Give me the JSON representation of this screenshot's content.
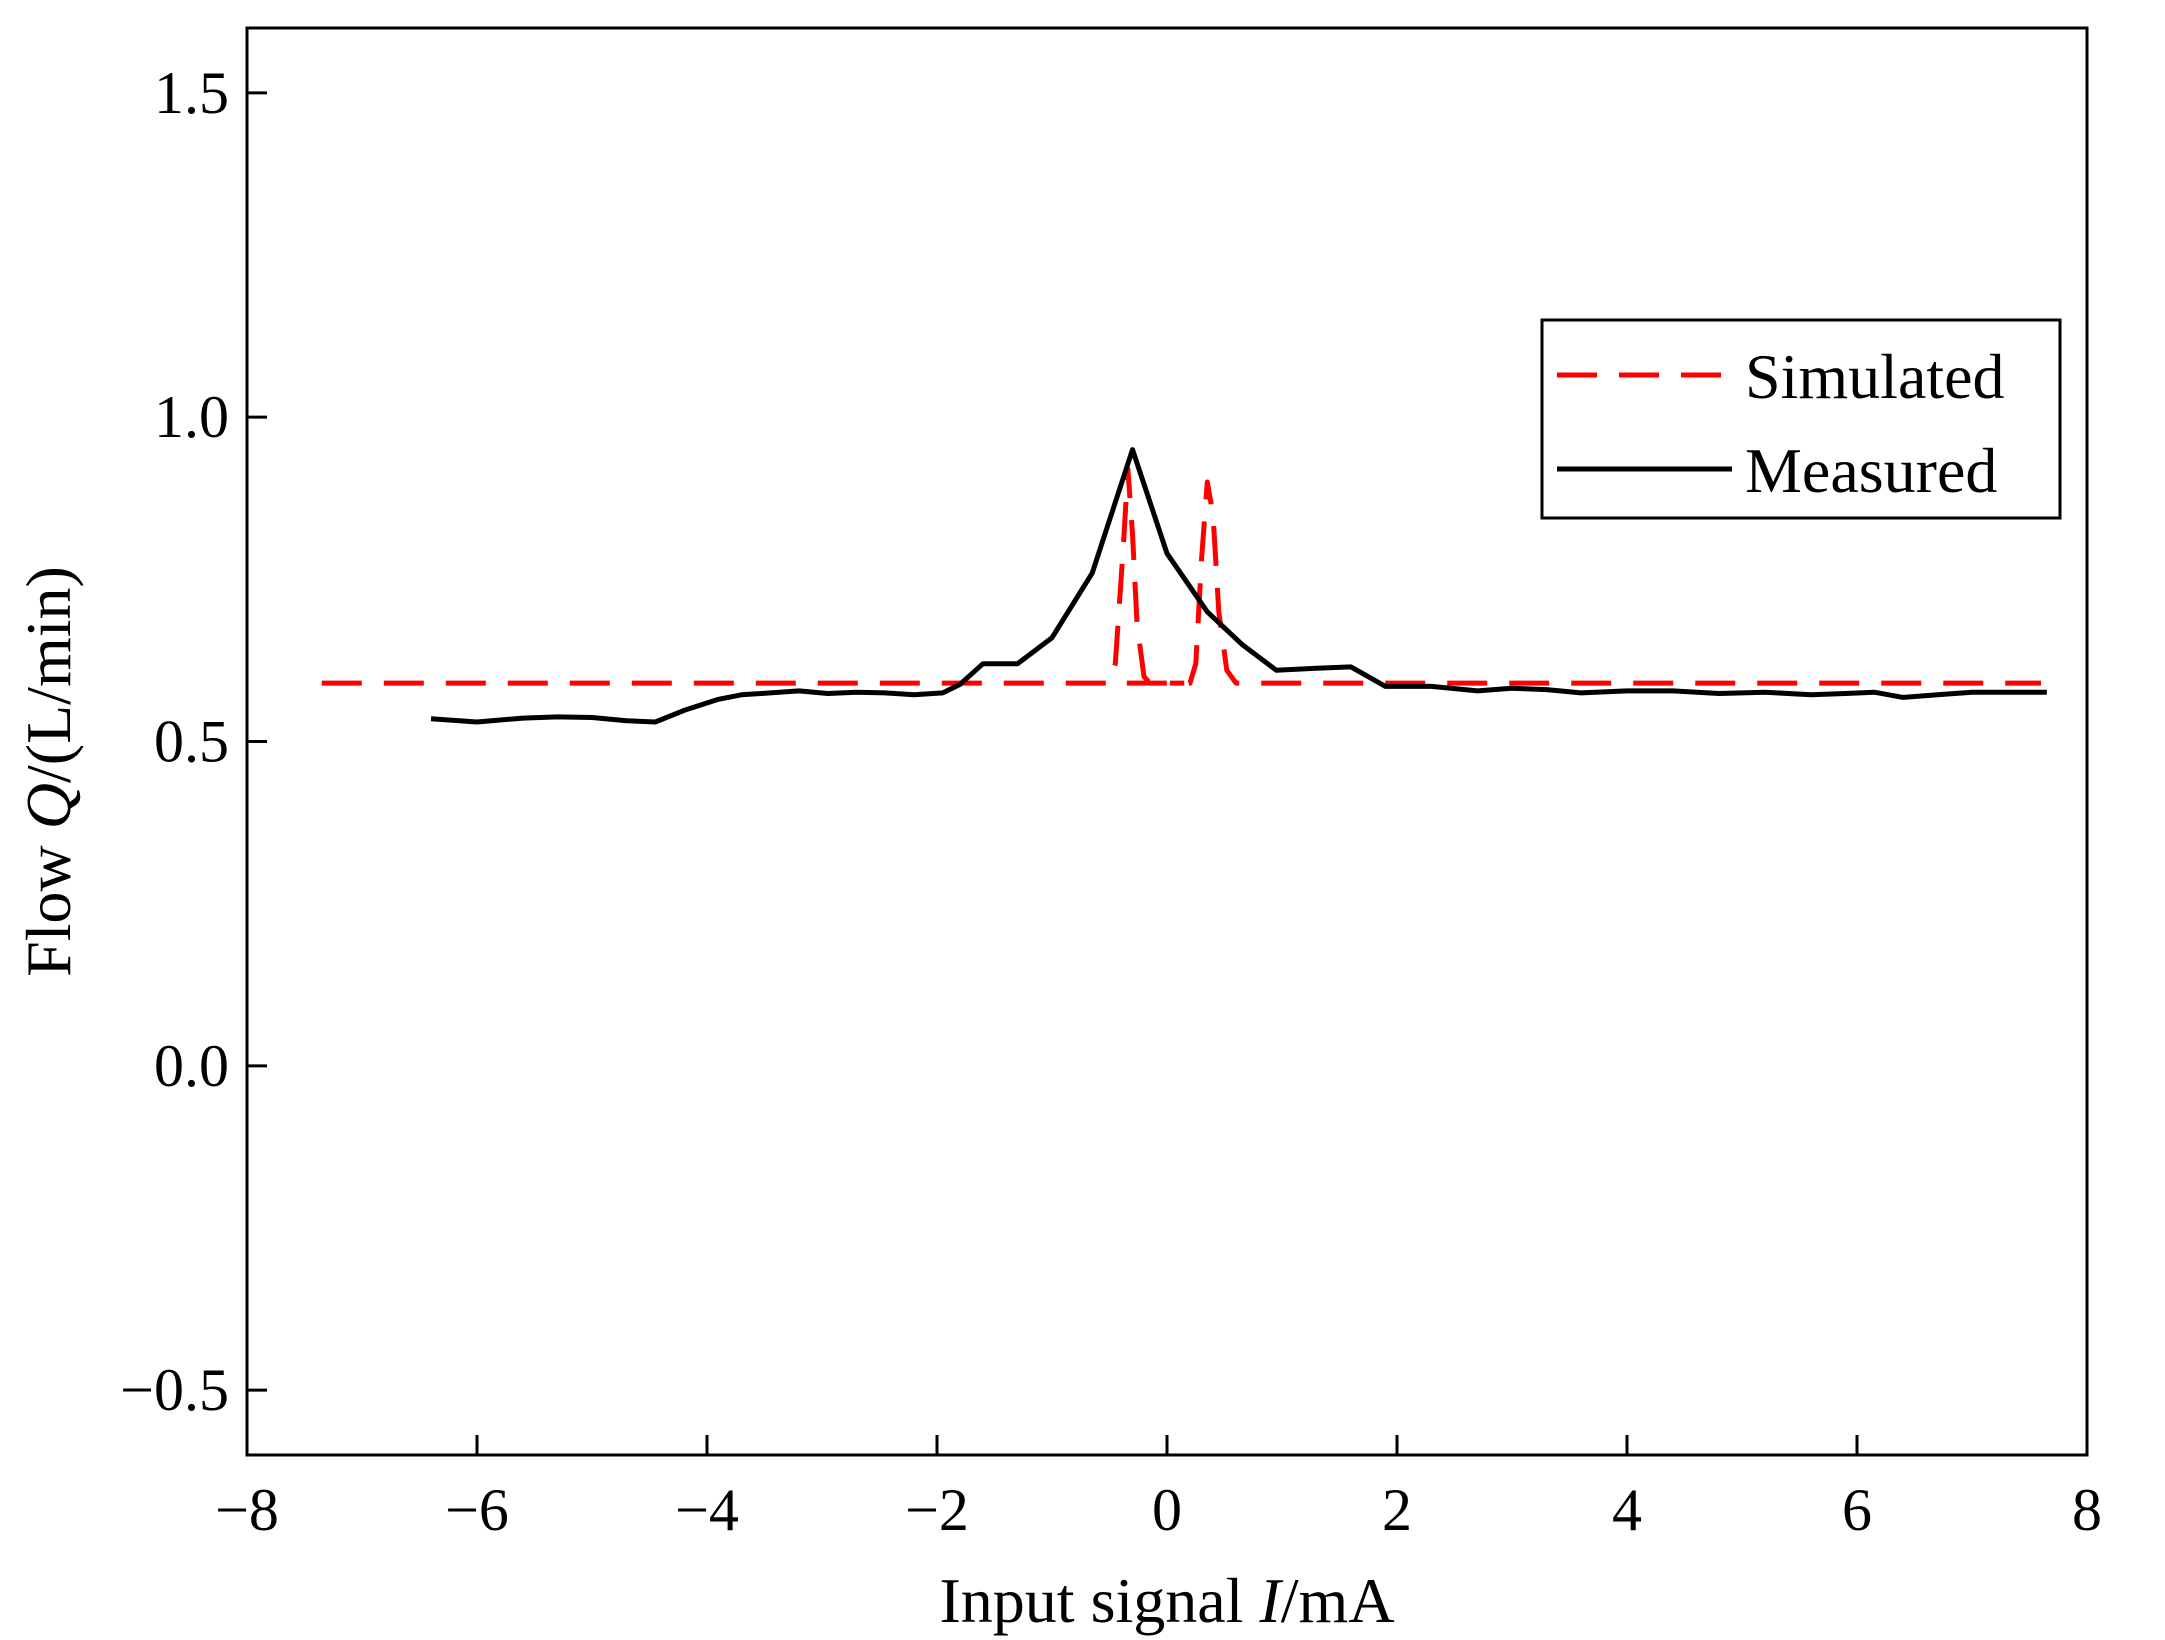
{
  "chart_data": {
    "type": "line",
    "title": "",
    "xlabel": {
      "prefix": "Input signal ",
      "symbol": "I",
      "suffix": "/mA"
    },
    "ylabel": {
      "prefix": "Flow ",
      "symbol": "Q",
      "suffix": "/(L/min)"
    },
    "xlim": [
      -8,
      8
    ],
    "ylim": [
      -0.6,
      1.6
    ],
    "xticks": [
      -8,
      -6,
      -4,
      -2,
      0,
      2,
      4,
      6,
      8
    ],
    "xtick_labels": [
      "−8",
      "−6",
      "−4",
      "−2",
      "0",
      "2",
      "4",
      "6",
      "8"
    ],
    "yticks": [
      -0.5,
      0.0,
      0.5,
      1.0,
      1.5
    ],
    "ytick_labels": [
      "−0.5",
      "0.0",
      "0.5",
      "1.0",
      "1.5"
    ],
    "grid": false,
    "legend_position": "upper-right",
    "series": [
      {
        "name": "Simulated",
        "color": "#ff0000",
        "style": "dashed",
        "segments": [
          [
            [
              -7.35,
              0.59
            ],
            [
              -0.5,
              0.59
            ],
            [
              -0.45,
              0.62
            ],
            [
              -0.38,
              0.8
            ],
            [
              -0.34,
              0.92
            ],
            [
              -0.3,
              0.82
            ],
            [
              -0.26,
              0.68
            ],
            [
              -0.2,
              0.6
            ],
            [
              -0.15,
              0.59
            ],
            [
              0.15,
              0.59
            ]
          ],
          [
            [
              -0.35,
              0.59
            ],
            [
              0.2,
              0.59
            ],
            [
              0.25,
              0.62
            ],
            [
              0.3,
              0.78
            ],
            [
              0.35,
              0.9
            ],
            [
              0.4,
              0.85
            ],
            [
              0.45,
              0.7
            ],
            [
              0.52,
              0.61
            ],
            [
              0.6,
              0.59
            ],
            [
              7.6,
              0.59
            ]
          ]
        ]
      },
      {
        "name": "Measured",
        "color": "#000000",
        "style": "solid",
        "points": [
          [
            -6.4,
            0.535
          ],
          [
            -6.0,
            0.53
          ],
          [
            -5.6,
            0.536
          ],
          [
            -5.3,
            0.538
          ],
          [
            -5.0,
            0.537
          ],
          [
            -4.7,
            0.532
          ],
          [
            -4.45,
            0.53
          ],
          [
            -4.2,
            0.548
          ],
          [
            -3.9,
            0.565
          ],
          [
            -3.7,
            0.572
          ],
          [
            -3.45,
            0.575
          ],
          [
            -3.2,
            0.578
          ],
          [
            -2.95,
            0.574
          ],
          [
            -2.7,
            0.576
          ],
          [
            -2.45,
            0.575
          ],
          [
            -2.2,
            0.572
          ],
          [
            -1.95,
            0.575
          ],
          [
            -1.8,
            0.588
          ],
          [
            -1.6,
            0.62
          ],
          [
            -1.3,
            0.62
          ],
          [
            -1.0,
            0.66
          ],
          [
            -0.65,
            0.76
          ],
          [
            -0.3,
            0.95
          ],
          [
            0.0,
            0.79
          ],
          [
            0.35,
            0.7
          ],
          [
            0.65,
            0.65
          ],
          [
            0.95,
            0.61
          ],
          [
            1.3,
            0.613
          ],
          [
            1.6,
            0.615
          ],
          [
            1.9,
            0.585
          ],
          [
            2.3,
            0.585
          ],
          [
            2.7,
            0.578
          ],
          [
            3.0,
            0.582
          ],
          [
            3.3,
            0.58
          ],
          [
            3.6,
            0.575
          ],
          [
            4.0,
            0.578
          ],
          [
            4.4,
            0.578
          ],
          [
            4.8,
            0.574
          ],
          [
            5.2,
            0.576
          ],
          [
            5.6,
            0.572
          ],
          [
            5.9,
            0.574
          ],
          [
            6.15,
            0.576
          ],
          [
            6.4,
            0.568
          ],
          [
            6.7,
            0.572
          ],
          [
            7.0,
            0.576
          ],
          [
            7.3,
            0.576
          ],
          [
            7.65,
            0.576
          ]
        ]
      }
    ]
  }
}
